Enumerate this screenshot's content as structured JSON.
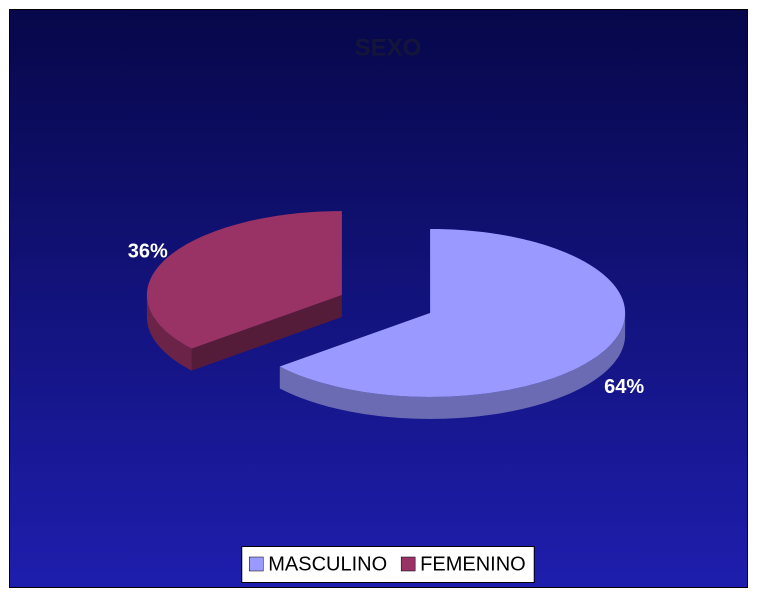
{
  "chart_data": {
    "type": "pie",
    "title": "SEXO",
    "categories": [
      "MASCULINO",
      "FEMENINO"
    ],
    "values": [
      64,
      36
    ],
    "value_labels": [
      "64%",
      "36%"
    ],
    "colors": [
      "#9999ff",
      "#993366"
    ],
    "legend": "bottom"
  }
}
